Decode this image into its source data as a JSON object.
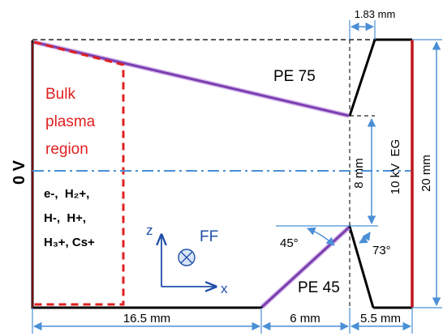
{
  "left_voltage": "0 V",
  "region_label": [
    "Bulk",
    "plasma",
    "region"
  ],
  "species": [
    "e-,  H₂+,",
    "H-,  H+,",
    "H₃+, Cs+"
  ],
  "pe75_label": "PE 75",
  "pe45_label": "PE 45",
  "eg_label": "10 kV  EG",
  "ff_label": "FF",
  "axis_z": "z",
  "axis_x": "x",
  "dims": {
    "top_gap": "1.83 mm",
    "aperture": "8 mm",
    "height": "20 mm",
    "bottom_left": "16.5 mm",
    "bottom_mid": "6 mm",
    "bottom_right": "5.5 mm"
  },
  "angles": {
    "left": "45°",
    "right": "73°"
  },
  "colors": {
    "region": "#e02020",
    "electrode": "#7b3fb0",
    "wall": "#c0141c",
    "dim": "#4a8fd6",
    "axis_text": "#1f4fa8",
    "outline": "#000000"
  }
}
